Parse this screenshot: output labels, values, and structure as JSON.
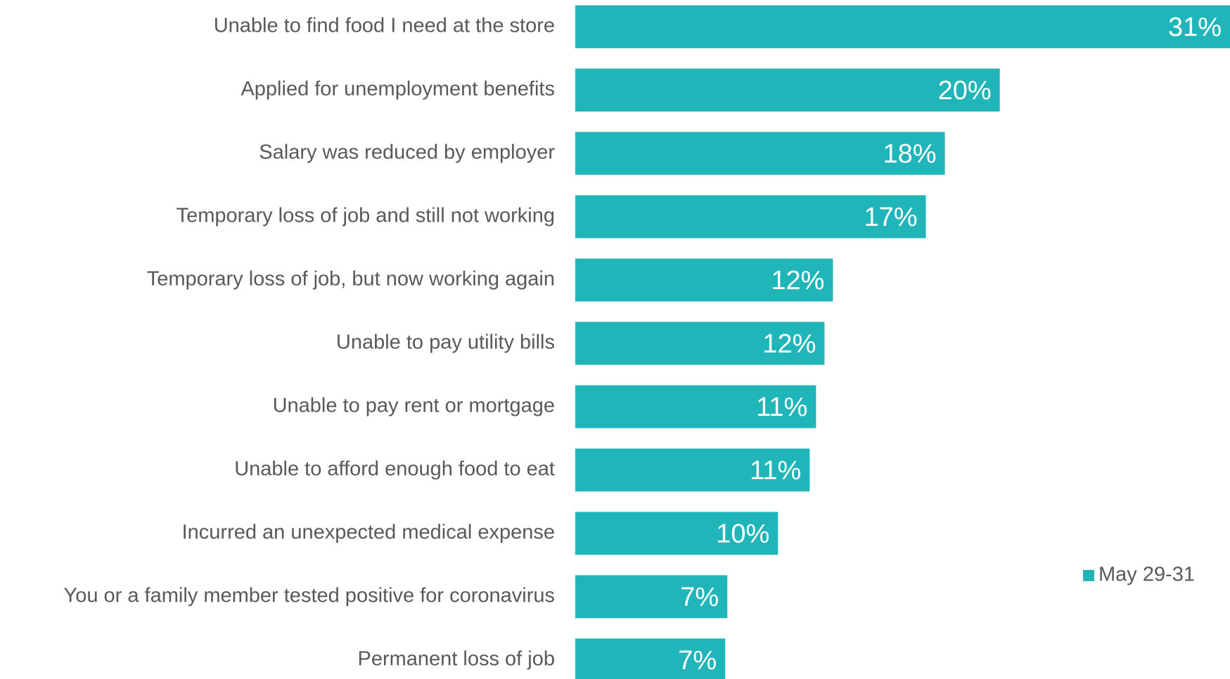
{
  "chart_data": {
    "type": "bar",
    "orientation": "horizontal",
    "categories": [
      "Unable to find food I need at the store",
      "Applied for unemployment benefits",
      "Salary was reduced by employer",
      "Temporary loss of job and still not working",
      "Temporary loss of job, but now working again",
      "Unable to pay utility bills",
      "Unable to pay rent or mortgage",
      "Unable to afford enough food to eat",
      "Incurred an unexpected medical expense",
      "You or a family member tested positive for coronavirus",
      "Permanent loss of job"
    ],
    "series": [
      {
        "name": "May 29-31",
        "color": "#20b5b9",
        "values": [
          31,
          20.1,
          17.5,
          16.6,
          12.2,
          11.8,
          11.4,
          11.1,
          9.6,
          7.2,
          7.1
        ],
        "value_labels": [
          "31%",
          "20%",
          "18%",
          "17%",
          "12%",
          "12%",
          "11%",
          "11%",
          "10%",
          "7%",
          "7%"
        ]
      }
    ],
    "xlim": [
      0,
      31
    ],
    "legend": "bottom-right"
  }
}
